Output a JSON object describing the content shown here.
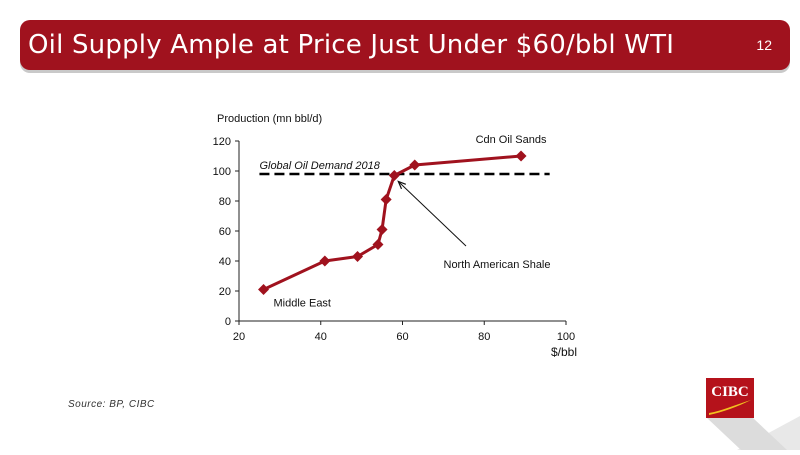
{
  "slide": {
    "title": "Oil Supply Ample at Price Just Under $60/bbl WTI",
    "number": "12",
    "source": "Source: BP, CIBC",
    "logo_text": "CIBC"
  },
  "colors": {
    "brand": "#a0121e",
    "series": "#a0121e",
    "demand_line": "#000000"
  },
  "chart_data": {
    "type": "line",
    "xlabel": "$/bbl",
    "ylabel": "Production (mn bbl/d)",
    "xlim": [
      20,
      100
    ],
    "ylim": [
      0,
      120
    ],
    "x_ticks": [
      20,
      40,
      60,
      80,
      100
    ],
    "y_ticks": [
      0,
      20,
      40,
      60,
      80,
      100,
      120
    ],
    "grid": false,
    "series": [
      {
        "x": [
          26,
          41,
          49,
          54,
          55,
          56,
          58,
          63,
          89
        ],
        "y": [
          21,
          40,
          43,
          51,
          61,
          81,
          97,
          104,
          110
        ]
      }
    ],
    "reference_line": {
      "label": "Global Oil Demand 2018",
      "y": 98,
      "x_range": [
        25,
        96
      ],
      "style": "dashed"
    },
    "annotations": [
      {
        "text": "Cdn Oil Sands",
        "x": 89,
        "y": 110
      },
      {
        "text": "Middle East",
        "x": 26,
        "y": 21
      },
      {
        "text": "North American Shale",
        "x": 58,
        "y": 97,
        "arrow": true
      }
    ]
  }
}
